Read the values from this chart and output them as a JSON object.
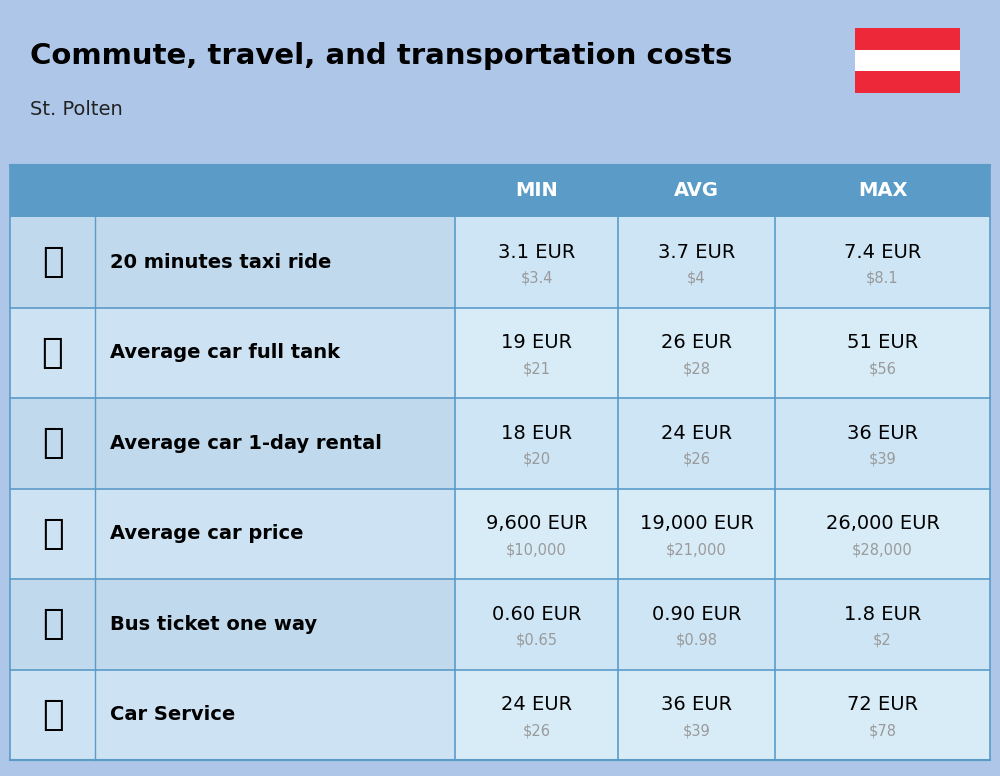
{
  "title": "Commute, travel, and transportation costs",
  "subtitle": "St. Polten",
  "bg_color": "#aec6e8",
  "header_bg_color": "#5b9bc8",
  "header_text_color": "#ffffff",
  "col_sep_color": "#5b9bc8",
  "row_colors": [
    "#c8ddf0",
    "#d4e6f5"
  ],
  "cell_colors": [
    "#d6e8f7",
    "#ddeef9"
  ],
  "columns": [
    "MIN",
    "AVG",
    "MAX"
  ],
  "rows": [
    {
      "label": "20 minutes taxi ride",
      "min_eur": "3.1 EUR",
      "min_usd": "$3.4",
      "avg_eur": "3.7 EUR",
      "avg_usd": "$4",
      "max_eur": "7.4 EUR",
      "max_usd": "$8.1"
    },
    {
      "label": "Average car full tank",
      "min_eur": "19 EUR",
      "min_usd": "$21",
      "avg_eur": "26 EUR",
      "avg_usd": "$28",
      "max_eur": "51 EUR",
      "max_usd": "$56"
    },
    {
      "label": "Average car 1-day rental",
      "min_eur": "18 EUR",
      "min_usd": "$20",
      "avg_eur": "24 EUR",
      "avg_usd": "$26",
      "max_eur": "36 EUR",
      "max_usd": "$39"
    },
    {
      "label": "Average car price",
      "min_eur": "9,600 EUR",
      "min_usd": "$10,000",
      "avg_eur": "19,000 EUR",
      "avg_usd": "$21,000",
      "max_eur": "26,000 EUR",
      "max_usd": "$28,000"
    },
    {
      "label": "Bus ticket one way",
      "min_eur": "0.60 EUR",
      "min_usd": "$0.65",
      "avg_eur": "0.90 EUR",
      "avg_usd": "$0.98",
      "max_eur": "1.8 EUR",
      "max_usd": "$2"
    },
    {
      "label": "Car Service",
      "min_eur": "24 EUR",
      "min_usd": "$26",
      "avg_eur": "36 EUR",
      "avg_usd": "$39",
      "max_eur": "72 EUR",
      "max_usd": "$78"
    }
  ],
  "flag_colors": [
    "#ED2939",
    "#ffffff",
    "#ED2939"
  ],
  "emoji_list": [
    "🚖",
    "⛽️",
    "🚙",
    "🚗",
    "🚌",
    "🚗"
  ],
  "eur_fontsize": 14,
  "usd_fontsize": 10.5,
  "label_fontsize": 14,
  "header_fontsize": 14,
  "title_fontsize": 21,
  "subtitle_fontsize": 14,
  "usd_color": "#9a9a9a"
}
